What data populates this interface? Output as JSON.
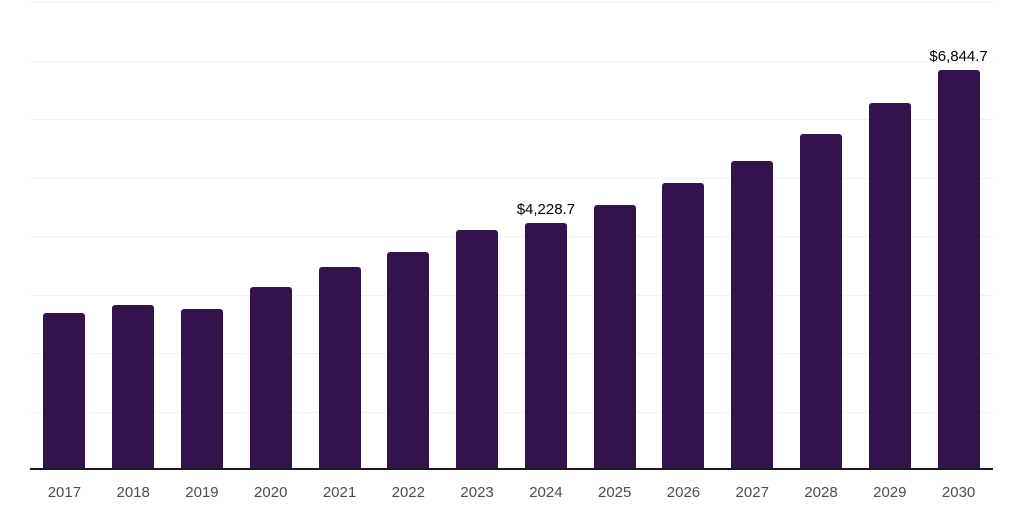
{
  "chart_data": {
    "type": "bar",
    "title": "",
    "xlabel": "",
    "ylabel": "",
    "categories": [
      "2017",
      "2018",
      "2019",
      "2020",
      "2021",
      "2022",
      "2023",
      "2024",
      "2025",
      "2026",
      "2027",
      "2028",
      "2029",
      "2030"
    ],
    "values": [
      2690,
      2820,
      2750,
      3130,
      3470,
      3725,
      4095,
      4228.7,
      4535,
      4905,
      5280,
      5745,
      6275,
      6844.7
    ],
    "bar_labels": [
      "",
      "",
      "",
      "",
      "",
      "",
      "",
      "$4,228.7",
      "",
      "",
      "",
      "",
      "",
      "$6,844.7"
    ],
    "ylim": [
      0,
      8000
    ],
    "gridline_step": 1000,
    "grid": "horizontal-only",
    "y_tick_labels_visible": false,
    "legend_position": "none",
    "colors": {
      "bar": "#32134c",
      "axis_line": "#1a1a1a",
      "x_tick_label": "#4d4d4d",
      "data_label": "#000000",
      "gridline": "#f2f2f4",
      "background": "#ffffff"
    }
  }
}
